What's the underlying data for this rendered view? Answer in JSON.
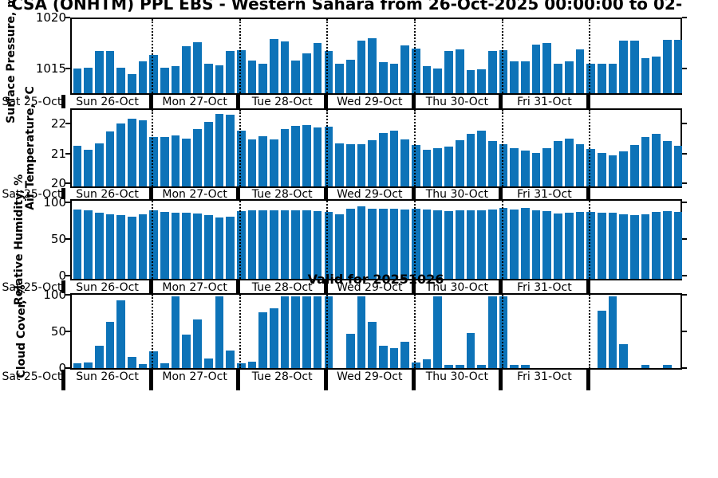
{
  "title": "CSA (ONHTM) PPL EBS  - Western Sahara from 26-Oct-2025 00:00:00 to 02-",
  "annotation": "Valid for 20251026",
  "colors": {
    "bar": "#0d73b8",
    "axis": "#000000",
    "background": "#ffffff"
  },
  "x_axis": {
    "left_label": "Sat 25-Oct",
    "day_labels": [
      "Sun 26-Oct",
      "Mon 27-Oct",
      "Tue 28-Oct",
      "Wed 29-Oct",
      "Thu 30-Oct",
      "Fri 31-Oct"
    ],
    "bars_per_day": 8,
    "interval_hours": 3
  },
  "chart_data": {
    "type": "bar",
    "title": "CSA (ONHTM) PPL EBS  - Western Sahara from 26-Oct-2025 00:00:00 to 02-",
    "x": "3-hourly steps, Sun 26-Oct through Sat 01-Nov (8 bars per day)",
    "legend": "none",
    "grid": "vertical dotted lines at midnight day boundaries",
    "panels": [
      {
        "ylabel": "Surface Pressure, mb",
        "yticks": [
          1015,
          1020
        ],
        "ylim": [
          1012.4,
          1020
        ],
        "values": [
          1014.9,
          1015.0,
          1016.75,
          1016.75,
          1015.0,
          1014.4,
          1015.65,
          1016.3,
          1015.05,
          1015.2,
          1017.25,
          1017.6,
          1015.45,
          1015.25,
          1016.75,
          1016.85,
          1015.75,
          1015.4,
          1017.95,
          1017.75,
          1015.75,
          1016.45,
          1017.55,
          1016.7,
          1015.45,
          1015.85,
          1017.8,
          1018.0,
          1015.6,
          1015.45,
          1017.3,
          1017.0,
          1015.2,
          1014.9,
          1016.7,
          1016.9,
          1014.8,
          1014.85,
          1016.7,
          1016.8,
          1015.65,
          1015.65,
          1017.4,
          1017.55,
          1015.45,
          1015.65,
          1016.9,
          1015.45,
          1015.4,
          1015.4,
          1017.8,
          1017.8,
          1016.0,
          1016.2,
          1017.85,
          1017.9
        ]
      },
      {
        "ylabel": "Air Temperature, °C",
        "yticks": [
          20,
          21,
          22
        ],
        "ylim": [
          19.85,
          22.5
        ],
        "values": [
          21.25,
          21.12,
          21.33,
          21.75,
          22.02,
          22.2,
          22.15,
          21.55,
          21.57,
          21.62,
          21.52,
          21.85,
          22.1,
          22.35,
          22.33,
          21.78,
          21.48,
          21.58,
          21.47,
          21.85,
          21.95,
          21.97,
          21.9,
          21.92,
          21.35,
          21.3,
          21.3,
          21.45,
          21.71,
          21.77,
          21.48,
          21.29,
          21.13,
          21.18,
          21.23,
          21.46,
          21.67,
          21.77,
          21.43,
          21.31,
          21.18,
          21.08,
          21.0,
          21.18,
          21.42,
          21.5,
          21.31,
          21.14,
          21.02,
          20.94,
          21.07,
          21.29,
          21.56,
          21.67,
          21.42,
          21.27
        ]
      },
      {
        "ylabel": "Relative Humidity, %",
        "yticks": [
          0,
          50,
          100
        ],
        "ylim": [
          -6,
          104
        ],
        "values": [
          92,
          91,
          87,
          85,
          84,
          82,
          85,
          90,
          88,
          87,
          87,
          86,
          84,
          81,
          82,
          89,
          91,
          91,
          91,
          90,
          90,
          90,
          89,
          88,
          85,
          93,
          96,
          93,
          93,
          93,
          92,
          93,
          92,
          90,
          89,
          90,
          90,
          91,
          92,
          94,
          92,
          94,
          91,
          89,
          86,
          87,
          88,
          88,
          87,
          87,
          85,
          84,
          85,
          88,
          89,
          88
        ]
      },
      {
        "ylabel": "Cloud Cover, %",
        "yticks": [
          0,
          50,
          100
        ],
        "ylim": [
          -2.5,
          102.5
        ],
        "values": [
          4,
          5,
          30,
          64,
          95,
          13,
          3,
          21,
          4,
          100,
          45,
          67,
          11,
          100,
          23,
          4,
          7,
          77,
          83,
          100,
          100,
          100,
          100,
          100,
          0,
          47,
          100,
          64,
          30,
          26,
          35,
          6,
          10,
          100,
          2,
          2,
          48,
          2,
          100,
          100,
          2,
          2,
          0,
          0,
          0,
          0,
          0,
          0,
          80,
          100,
          32,
          0,
          2,
          0,
          2,
          0
        ]
      }
    ]
  }
}
